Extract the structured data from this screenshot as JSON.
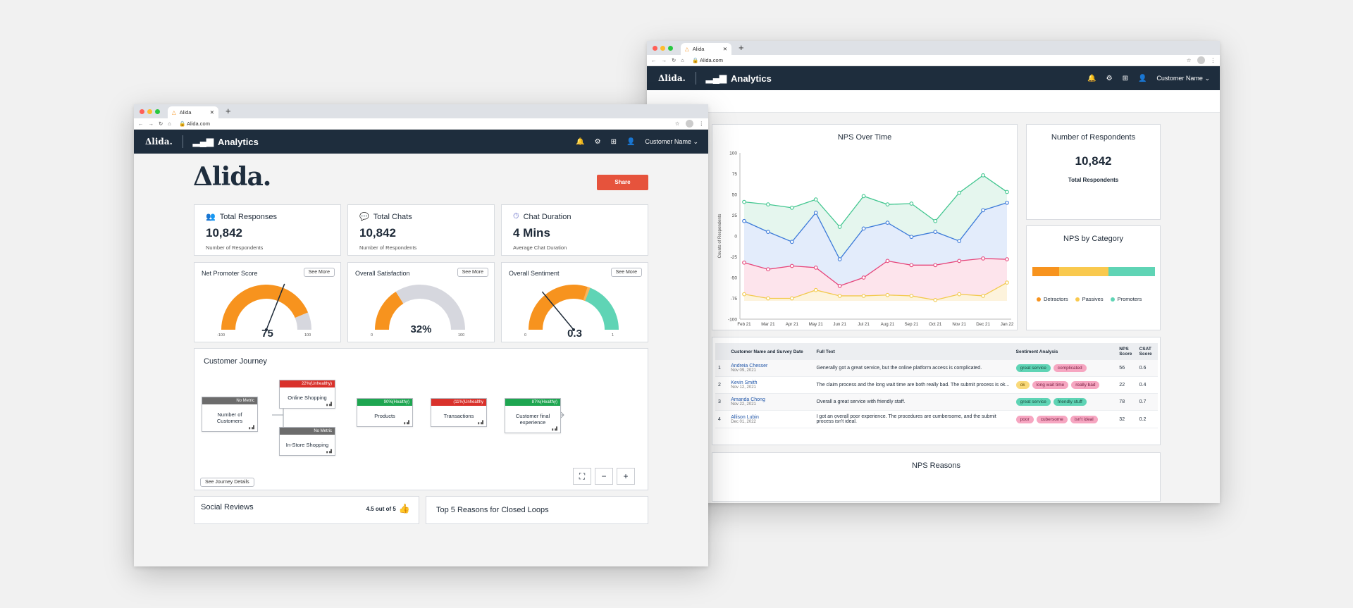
{
  "browser": {
    "tab_title": "Alida",
    "url": "Alida.com"
  },
  "appbar": {
    "logo": "Δlida.",
    "title": "Analytics",
    "user": "Customer  Name"
  },
  "colors": {
    "navy": "#1e2d3d",
    "orange": "#f7931e",
    "yellow": "#f9c94e",
    "teal": "#5fd4b5",
    "red": "#e6533c"
  },
  "left": {
    "brand": "Δlida.",
    "share_label": "Share",
    "kpis": [
      {
        "icon": "people-icon",
        "title": "Total Responses",
        "value": "10,842",
        "sub": "Number of Respondents"
      },
      {
        "icon": "chat-icon",
        "title": "Total Chats",
        "value": "10,842",
        "sub": "Number of Respondents"
      },
      {
        "icon": "stopwatch-icon",
        "title": "Chat Duration",
        "value": "4 Mins",
        "sub": "Average Chat Duration"
      }
    ],
    "gauges": [
      {
        "title": "Net Promoter Score",
        "btn": "See More",
        "value": "75",
        "min": "-100",
        "max": "100",
        "fill": 0.875
      },
      {
        "title": "Overall Satisfaction",
        "btn": "See More",
        "value": "32%",
        "min": "0",
        "max": "100",
        "fill": 0.32
      },
      {
        "title": "Overall Sentiment",
        "btn": "See More",
        "value": "0.3",
        "min": "0",
        "max": "1",
        "fill": 0.3
      }
    ],
    "journey": {
      "title": "Customer Journey",
      "details_btn": "See Journey Details",
      "nodes": [
        {
          "badge": "No Metric",
          "label": "Number of Customers",
          "color": "#6c6c6c"
        },
        {
          "badge": "22%(Unhealthy)",
          "label": "Online Shopping",
          "color": "#d9312b"
        },
        {
          "badge": "No Metric",
          "label": "In-Store Shopping",
          "color": "#6c6c6c"
        },
        {
          "badge": "90%(Healthy)",
          "label": "Products",
          "color": "#1ea651"
        },
        {
          "badge": "(11%)Unhealthy",
          "label": "Transactions",
          "color": "#d9312b"
        },
        {
          "badge": "87%(Healthy)",
          "label": "Customer final experience",
          "color": "#1ea651"
        }
      ]
    },
    "social": {
      "title": "Social Reviews",
      "rating": "4.5 out of 5"
    },
    "reasons": {
      "title": "Top 5 Reasons for Closed Loops"
    }
  },
  "right": {
    "nps_over_time": {
      "title": "NPS Over Time"
    },
    "respondents": {
      "title": "Number of Respondents",
      "value": "10,842",
      "sub": "Total Respondents"
    },
    "nps_by_category": {
      "title": "NPS by Category",
      "legend": [
        "Detractors",
        "Passives",
        "Promoters"
      ]
    },
    "nps_reasons": {
      "title": "NPS Reasons"
    },
    "table": {
      "headers": [
        "",
        "Customer Name and Survey Date",
        "Full Text",
        "Sentiment Analysis",
        "NPS Score",
        "CSAT Score"
      ],
      "rows": [
        {
          "n": "1",
          "name": "Andreia Chesser",
          "date": "Nov 09, 2021",
          "text": "Generally got a great service, but the online platform access is complicated.",
          "tags": [
            [
              "great service",
              "g"
            ],
            [
              "complicated",
              "p"
            ]
          ],
          "nps": "56",
          "csat": "0.6"
        },
        {
          "n": "2",
          "name": "Kevin Smith",
          "date": "Nov 12, 2021",
          "text": "The claim process and the long wait time are both really bad. The submit process is ok...",
          "tags": [
            [
              "ok",
              "y"
            ],
            [
              "long wait time",
              "p"
            ],
            [
              "really bad",
              "p"
            ]
          ],
          "nps": "22",
          "csat": "0.4"
        },
        {
          "n": "3",
          "name": "Amanda Chong",
          "date": "Nov 22, 2021",
          "text": "Overall a great service with friendly staff.",
          "tags": [
            [
              "great service",
              "g"
            ],
            [
              "friendly stuff",
              "g"
            ]
          ],
          "nps": "78",
          "csat": "0.7"
        },
        {
          "n": "4",
          "name": "Allison Lubin",
          "date": "Dec 01, 2022",
          "text": "I got an overall poor experience. The procedures are cumbersome, and the submit process isn't ideal.",
          "tags": [
            [
              "poor",
              "p"
            ],
            [
              "cubersome",
              "p"
            ],
            [
              "isn't ideal",
              "p"
            ]
          ],
          "nps": "32",
          "csat": "0.2"
        }
      ]
    }
  },
  "chart_data": [
    {
      "type": "line",
      "title": "NPS Over Time",
      "ylabel": "Counts of Respondents",
      "xlabel": "",
      "x": [
        "Feb 21",
        "Mar 21",
        "Apr 21",
        "May 21",
        "Jun 21",
        "Jul 21",
        "Aug 21",
        "Sep 21",
        "Oct 21",
        "Nov 21",
        "Dec 21",
        "Jan 22"
      ],
      "ylim": [
        -100,
        100
      ],
      "yticks": [
        "100",
        "75",
        "50",
        "25",
        "0",
        "-25",
        "-50",
        "-75",
        "-100"
      ],
      "series": [
        {
          "color": "#41c68f",
          "values": [
            41,
            38,
            34,
            44,
            11,
            48,
            38,
            39,
            18,
            52,
            73,
            53
          ]
        },
        {
          "color": "#3c7ad9",
          "values": [
            18,
            5,
            -7,
            28,
            -28,
            9,
            16,
            -1,
            5,
            -6,
            31,
            40
          ]
        },
        {
          "color": "#e6457a",
          "values": [
            -32,
            -40,
            -36,
            -38,
            -60,
            -50,
            -30,
            -35,
            -35,
            -30,
            -27,
            -28
          ]
        },
        {
          "color": "#f2c94c",
          "values": [
            -70,
            -75,
            -75,
            -65,
            -72,
            -72,
            -71,
            -72,
            -77,
            -70,
            -72,
            -56
          ]
        }
      ]
    },
    {
      "type": "bar",
      "title": "NPS by Category",
      "categories": [
        "Detractors",
        "Passives",
        "Promoters"
      ],
      "values": [
        22,
        40,
        38
      ],
      "colors": [
        "#f7931e",
        "#f9c94e",
        "#5fd4b5"
      ]
    }
  ]
}
